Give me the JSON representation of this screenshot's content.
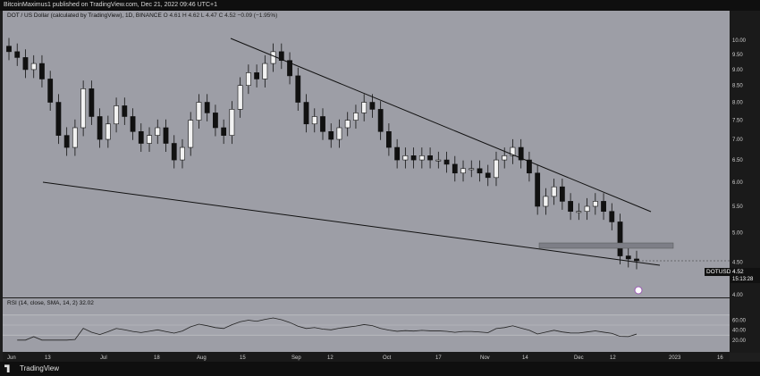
{
  "header": {
    "text": "BitcoinMaximus1 published on TradingView.com, Dec 21, 2022 09:46 UTC+1"
  },
  "legend": {
    "symbol": "DOT / US Dollar (calculated by TradingView), 1D, BINANCE",
    "o": "O 4.61",
    "h": "H 4.62",
    "l": "L 4.47",
    "c": "C 4.52",
    "chg": "−0.09 (−1.95%)"
  },
  "rsi_legend": {
    "label": "RSI (14, close, SMA, 14, 2)",
    "value": "32.02"
  },
  "price_tag": {
    "symbol": "DOTUSD",
    "price": "4.52",
    "countdown": "15:13:28"
  },
  "footer": {
    "brand": "TradingView"
  },
  "chart_data": {
    "type": "candlestick",
    "currency": "USD",
    "scale": "log",
    "ylim": [
      4.0,
      10.5
    ],
    "y_ticks": [
      "10.00",
      "9.50",
      "9.00",
      "8.50",
      "8.00",
      "7.50",
      "7.00",
      "6.50",
      "6.00",
      "5.50",
      "5.00",
      "4.50",
      "4.00"
    ],
    "x_ticks": [
      "Jun",
      "13",
      "Jul",
      "18",
      "Aug",
      "15",
      "Sep",
      "12",
      "Oct",
      "17",
      "Nov",
      "14",
      "Dec",
      "12",
      "2023",
      "16"
    ],
    "close_series": [
      9.6,
      9.4,
      9.0,
      9.2,
      8.7,
      8.0,
      7.1,
      6.8,
      7.3,
      8.4,
      7.6,
      7.0,
      7.4,
      7.9,
      7.6,
      7.2,
      6.9,
      7.1,
      7.3,
      6.9,
      6.5,
      6.8,
      7.5,
      8.0,
      7.7,
      7.3,
      7.1,
      7.8,
      8.5,
      8.9,
      8.7,
      9.2,
      9.6,
      9.3,
      8.8,
      8.0,
      7.4,
      7.6,
      7.2,
      7.0,
      7.3,
      7.5,
      7.7,
      8.0,
      7.8,
      7.2,
      6.8,
      6.5,
      6.6,
      6.5,
      6.6,
      6.5,
      6.5,
      6.4,
      6.2,
      6.3,
      6.3,
      6.2,
      6.1,
      6.5,
      6.6,
      6.8,
      6.5,
      6.2,
      5.5,
      5.7,
      5.9,
      5.6,
      5.4,
      5.4,
      5.5,
      5.6,
      5.4,
      5.2,
      4.6,
      4.55,
      4.52
    ],
    "rsi": {
      "ylim": [
        0,
        100
      ],
      "ticks": [
        "60.00",
        "40.00",
        "20.00"
      ],
      "bands": [
        70,
        50,
        30
      ],
      "last": 32.02
    },
    "annotations": [
      "descending trendline",
      "ascending/support trendline",
      "horizontal support zone ~5.0-5.1"
    ]
  }
}
